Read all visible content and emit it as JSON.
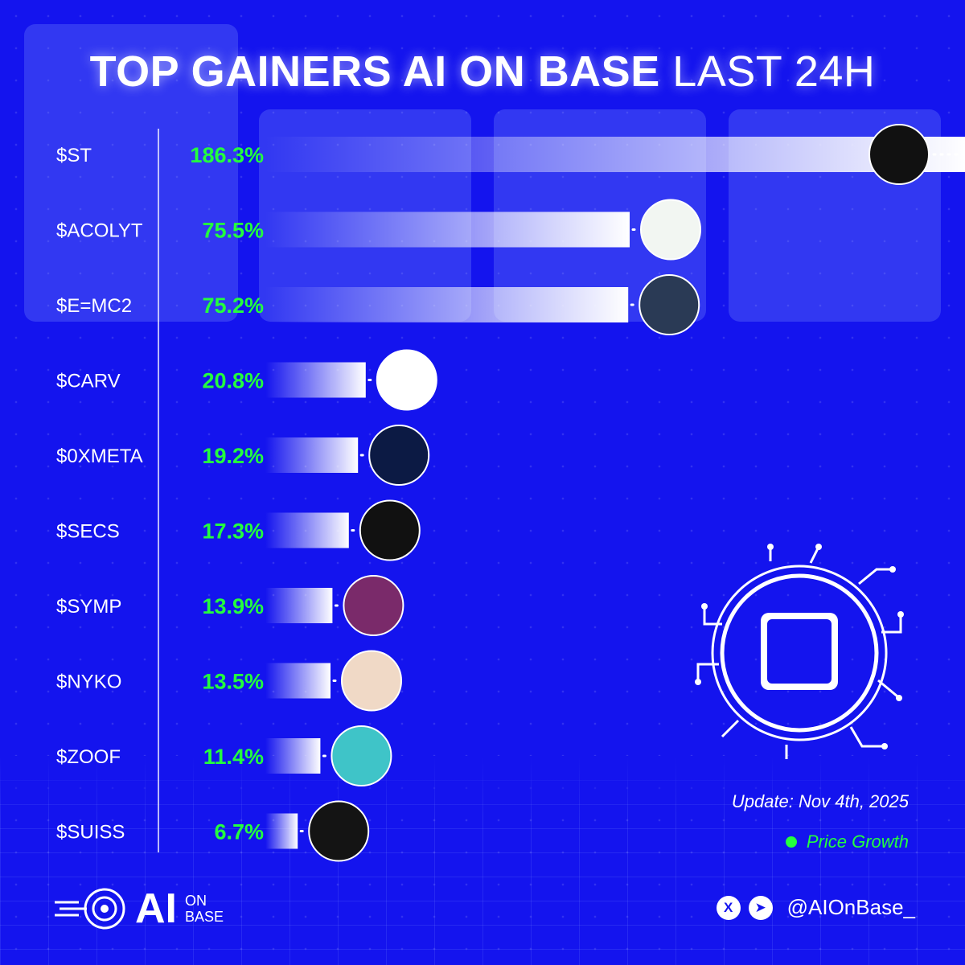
{
  "title": {
    "bold": "TOP GAINERS AI ON BASE",
    "light": "LAST 24H"
  },
  "chart_data": {
    "type": "bar",
    "orientation": "horizontal",
    "categories": [
      "$ST",
      "$ACOLYT",
      "$E=MC2",
      "$CARV",
      "$0XMETA",
      "$SECS",
      "$SYMP",
      "$NYKO",
      "$ZOOF",
      "$SUISS"
    ],
    "values": [
      186.3,
      75.5,
      75.2,
      20.8,
      19.2,
      17.3,
      13.9,
      13.5,
      11.4,
      6.7
    ],
    "value_labels": [
      "186.3%",
      "75.5%",
      "75.2%",
      "20.8%",
      "19.2%",
      "17.3%",
      "13.9%",
      "13.5%",
      "11.4%",
      "6.7%"
    ],
    "unit": "%",
    "bar_color": "#ffffff",
    "value_color": "#23ff3e",
    "icons": [
      "s-logo-icon",
      "acolyt-avatar-icon",
      "einstein-avatar-icon",
      "carv-logo-icon",
      "0xmeta-logo-icon",
      "octopus-avatar-icon",
      "symp-avatar-icon",
      "anime-girl-avatar-icon",
      "z-logo-icon",
      "astronaut-avatar-icon"
    ],
    "legend": [
      "Price Growth"
    ],
    "legend_position": "bottom-right",
    "grid": false
  },
  "update_text": "Update: Nov 4th, 2025",
  "legend_label": "Price Growth",
  "brand": {
    "main": "AI",
    "sub_top": "ON",
    "sub_bottom": "BASE"
  },
  "social": {
    "x_icon": "x-icon",
    "telegram_icon": "telegram-icon",
    "handle": "@AIOnBase_"
  },
  "colors": {
    "background": "#1414ee",
    "accent": "#23ff3e",
    "bar": "#ffffff"
  }
}
